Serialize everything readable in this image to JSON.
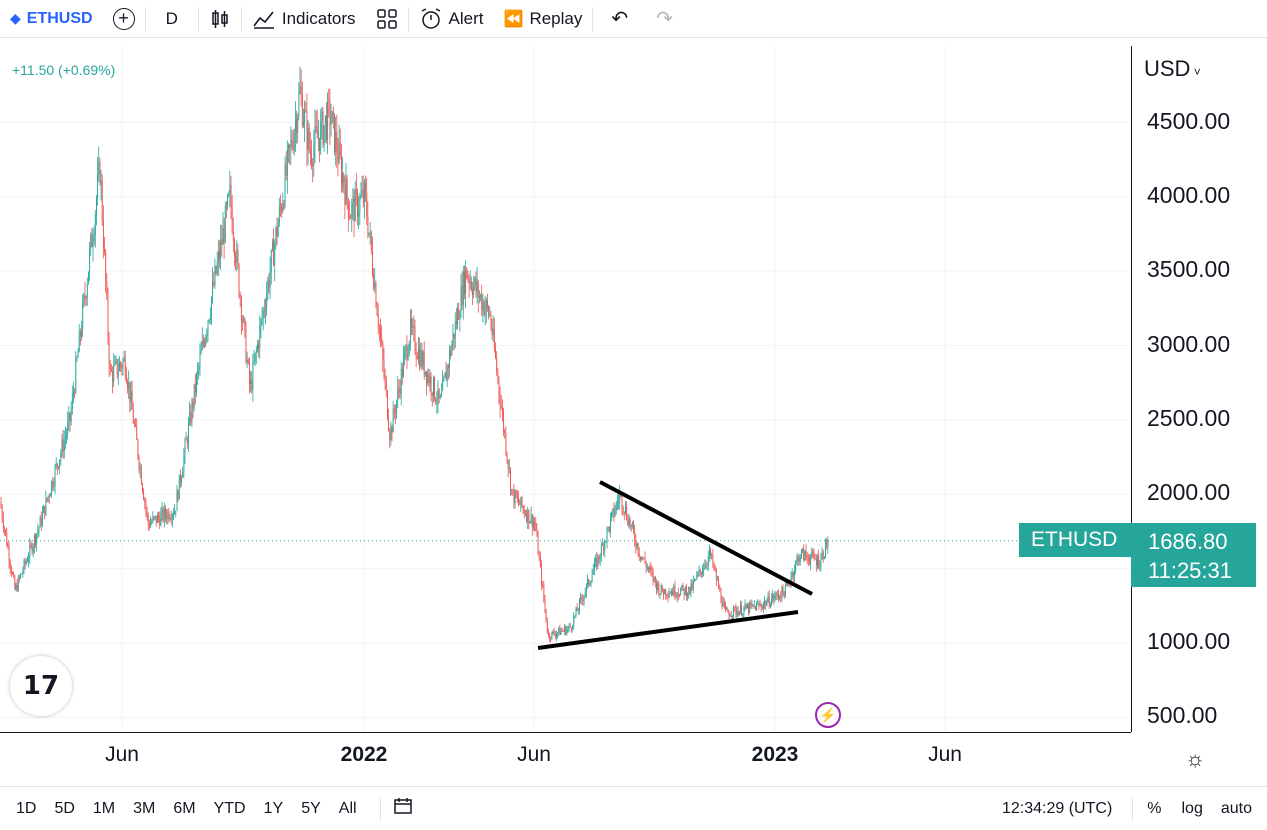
{
  "toolbar": {
    "symbol": "ETHUSD",
    "interval": "D",
    "indicators_label": "Indicators",
    "alert_label": "Alert",
    "replay_label": "Replay"
  },
  "legend": {
    "change": "+11.50 (+0.69%)"
  },
  "price_axis": {
    "currency": "USD",
    "ticks": [
      "4500.00",
      "4000.00",
      "3500.00",
      "3000.00",
      "2500.00",
      "2000.00",
      "1000.00",
      "500.00"
    ]
  },
  "time_axis": {
    "labels": [
      {
        "text": "Jun",
        "bold": false
      },
      {
        "text": "2022",
        "bold": true
      },
      {
        "text": "Jun",
        "bold": false
      },
      {
        "text": "2023",
        "bold": true
      },
      {
        "text": "Jun",
        "bold": false
      }
    ]
  },
  "last_price": {
    "ticker": "ETHUSD",
    "price": "1686.80",
    "countdown": "11:25:31"
  },
  "bottom_bar": {
    "ranges": [
      "1D",
      "5D",
      "1M",
      "3M",
      "6M",
      "YTD",
      "1Y",
      "5Y",
      "All"
    ],
    "time": "12:34:29 (UTC)",
    "percent_label": "%",
    "log_label": "log",
    "auto_label": "auto"
  },
  "colors": {
    "up": "#26a69a",
    "down": "#ef5350",
    "accent": "#2962ff"
  },
  "chart_data": {
    "type": "candlestick",
    "series": [
      {
        "name": "ETHUSD",
        "x": [
          "2021-04",
          "2021-05",
          "2021-05",
          "2021-06",
          "2021-07",
          "2021-08",
          "2021-09",
          "2021-10",
          "2021-11",
          "2021-11",
          "2021-12",
          "2022-01",
          "2022-02",
          "2022-03",
          "2022-04",
          "2022-05",
          "2022-06",
          "2022-07",
          "2022-08",
          "2022-09",
          "2022-10",
          "2022-11",
          "2022-12",
          "2023-01",
          "2023-02"
        ],
        "values": [
          2500,
          3900,
          2700,
          2300,
          2000,
          3200,
          3400,
          3600,
          4700,
          4300,
          3800,
          3100,
          2800,
          3300,
          3000,
          2000,
          1100,
          1500,
          1900,
          1350,
          1300,
          1200,
          1200,
          1550,
          1686.8
        ]
      }
    ],
    "ylim": [
      500,
      4800
    ],
    "trendlines": [
      {
        "from": [
          "2022-06",
          950
        ],
        "to": [
          "2023-01",
          1230
        ]
      },
      {
        "from": [
          "2022-08",
          2080
        ],
        "to": [
          "2023-01",
          1350
        ]
      }
    ]
  }
}
